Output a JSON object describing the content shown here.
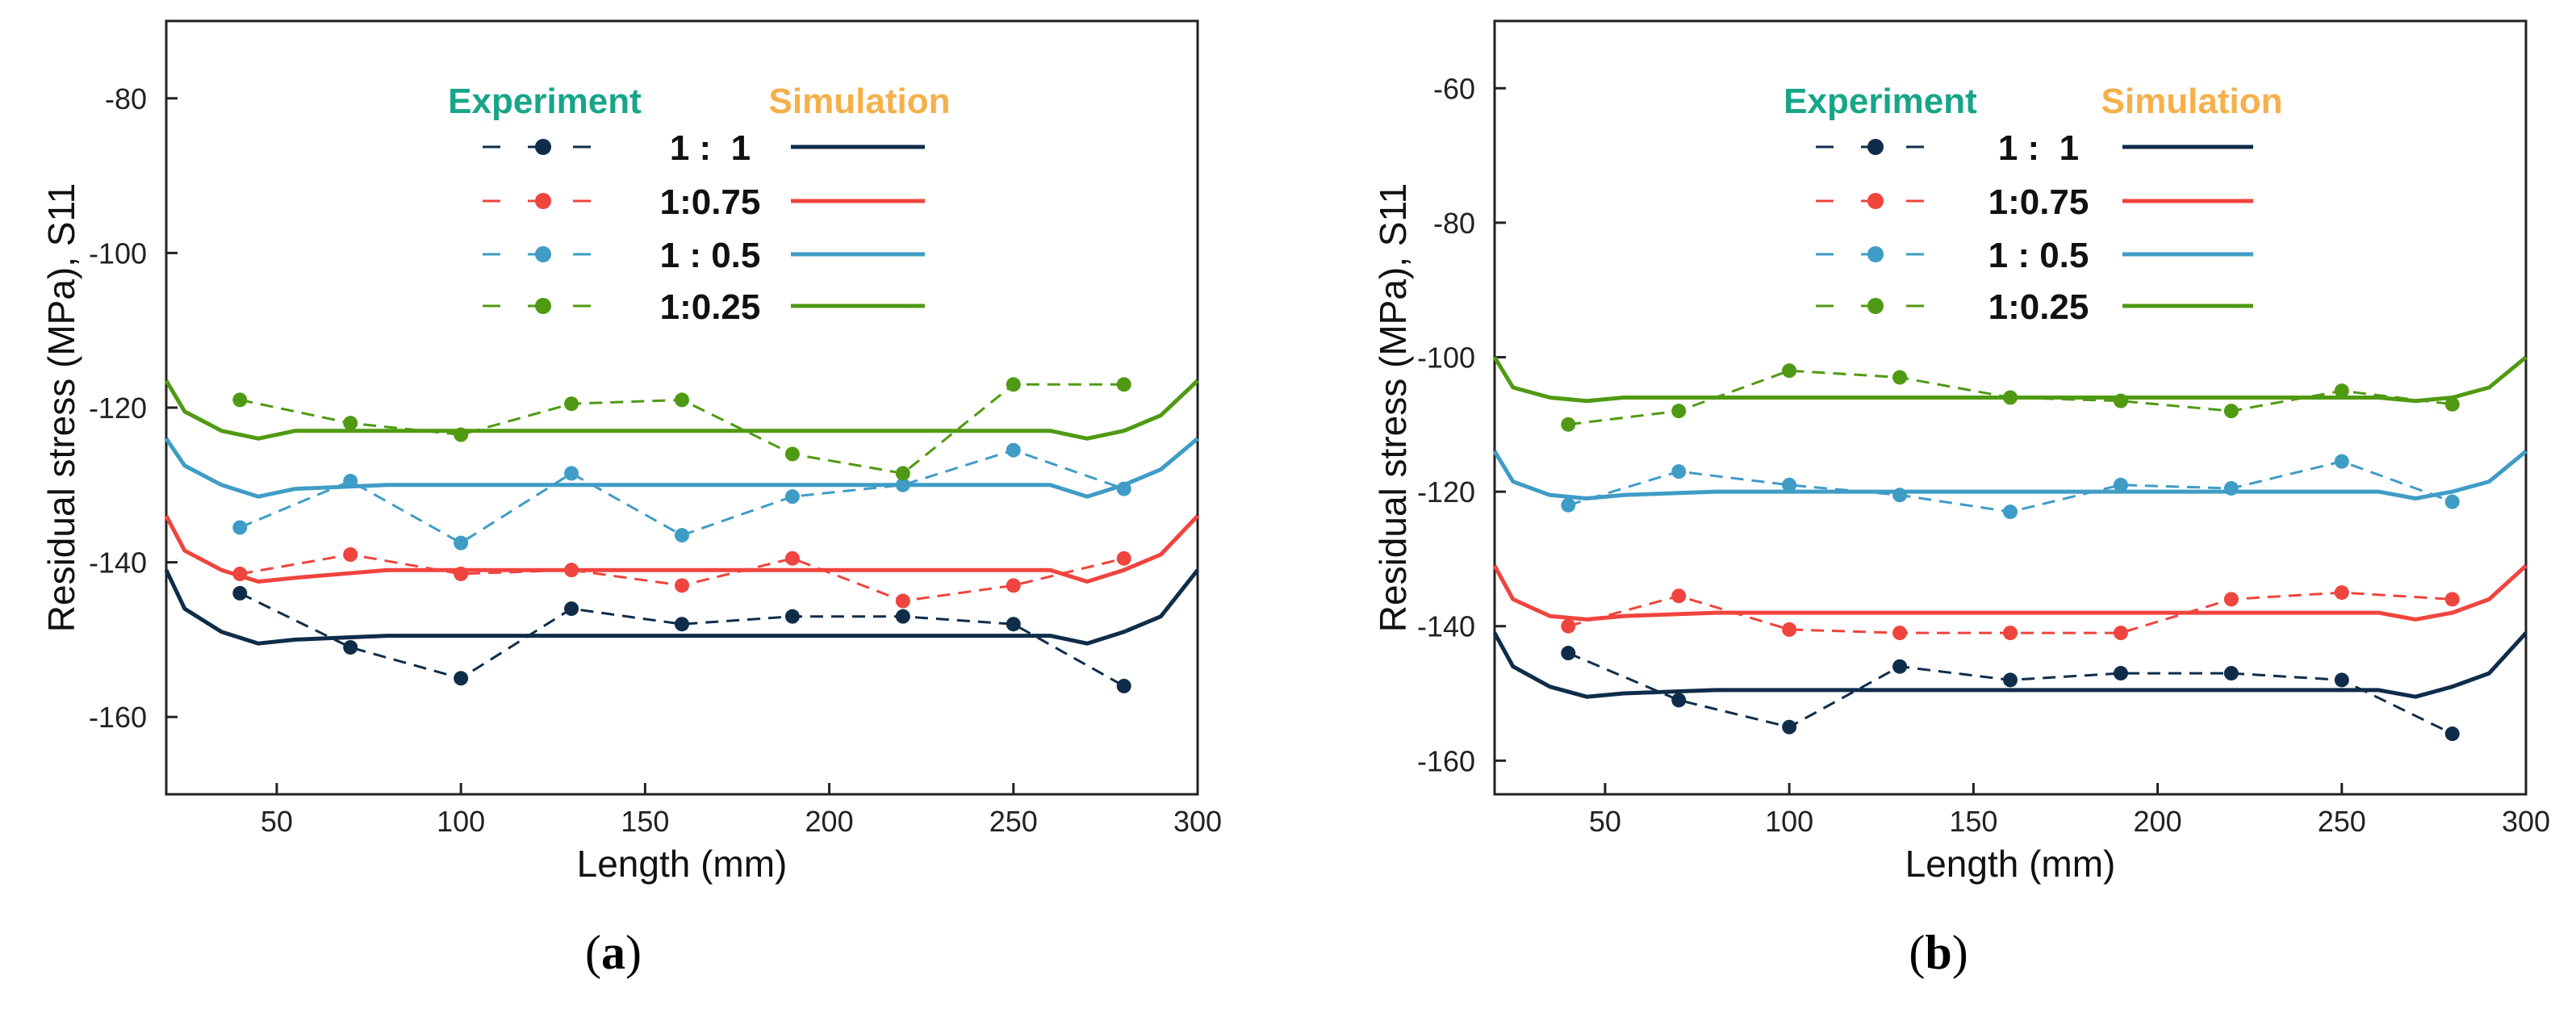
{
  "figure": {
    "legend_header_experiment": "Experiment",
    "legend_header_simulation": "Simulation",
    "colors": {
      "1 :  1": "#0f2d4a",
      "1:0.75": "#f0443e",
      "1 : 0.5": "#3f9cc6",
      "1:0.25": "#4f9a12",
      "experiment_header": "#17a589",
      "simulation_header": "#f5b04a"
    }
  },
  "chart_data": [
    {
      "type": "line",
      "panel": "a",
      "panel_prefix": "(",
      "panel_letter": "a",
      "panel_suffix": ")",
      "xlabel": "Length (mm)",
      "ylabel": "Residual stress (MPa), S11",
      "xlim": [
        20,
        300
      ],
      "ylim": [
        -170,
        -70
      ],
      "xticks": [
        50,
        100,
        150,
        200,
        250,
        300
      ],
      "yticks": [
        -160,
        -140,
        -120,
        -100,
        -80
      ],
      "legend": [
        "1 :  1",
        "1:0.75",
        "1 : 0.5",
        "1:0.25"
      ],
      "experiment": [
        {
          "name": "1 :  1",
          "x": [
            40,
            70,
            100,
            130,
            160,
            190,
            220,
            250,
            280
          ],
          "y": [
            -144,
            -151,
            -155,
            -146,
            -148,
            -147,
            -147,
            -148,
            -156
          ]
        },
        {
          "name": "1:0.75",
          "x": [
            40,
            70,
            100,
            130,
            160,
            190,
            220,
            250,
            280
          ],
          "y": [
            -141.5,
            -139,
            -141.5,
            -141,
            -143,
            -139.5,
            -145,
            -143,
            -139.5
          ]
        },
        {
          "name": "1 : 0.5",
          "x": [
            40,
            70,
            100,
            130,
            160,
            190,
            220,
            250,
            280
          ],
          "y": [
            -135.5,
            -129.5,
            -137.5,
            -128.5,
            -136.5,
            -131.5,
            -130,
            -125.5,
            -130.5
          ]
        },
        {
          "name": "1:0.25",
          "x": [
            40,
            70,
            100,
            130,
            160,
            190,
            220,
            250,
            280
          ],
          "y": [
            -119,
            -122,
            -123.5,
            -119.5,
            -119,
            -126,
            -128.5,
            -117,
            -117
          ]
        }
      ],
      "simulation": [
        {
          "name": "1 :  1",
          "x": [
            20,
            25,
            35,
            45,
            55,
            80,
            150,
            260,
            270,
            280,
            290,
            300
          ],
          "y": [
            -141,
            -146,
            -149,
            -150.5,
            -150,
            -149.5,
            -149.5,
            -149.5,
            -150.5,
            -149,
            -147,
            -141
          ]
        },
        {
          "name": "1:0.75",
          "x": [
            20,
            25,
            35,
            45,
            55,
            80,
            150,
            260,
            270,
            280,
            290,
            300
          ],
          "y": [
            -134,
            -138.5,
            -141,
            -142.5,
            -142,
            -141,
            -141,
            -141,
            -142.5,
            -141,
            -139,
            -134
          ]
        },
        {
          "name": "1 : 0.5",
          "x": [
            20,
            25,
            35,
            45,
            55,
            80,
            150,
            260,
            270,
            280,
            290,
            300
          ],
          "y": [
            -124,
            -127.5,
            -130,
            -131.5,
            -130.5,
            -130,
            -130,
            -130,
            -131.5,
            -130,
            -128,
            -124
          ]
        },
        {
          "name": "1:0.25",
          "x": [
            20,
            25,
            35,
            45,
            55,
            80,
            150,
            260,
            270,
            280,
            290,
            300
          ],
          "y": [
            -116.5,
            -120.5,
            -123,
            -124,
            -123,
            -123,
            -123,
            -123,
            -124,
            -123,
            -121,
            -116.5
          ]
        }
      ]
    },
    {
      "type": "line",
      "panel": "b",
      "panel_prefix": "(",
      "panel_letter": "b",
      "panel_suffix": ")",
      "xlabel": "Length (mm)",
      "ylabel": "Residual stress (MPa), S11",
      "xlim": [
        20,
        300
      ],
      "ylim": [
        -165,
        -50
      ],
      "xticks": [
        50,
        100,
        150,
        200,
        250,
        300
      ],
      "yticks": [
        -160,
        -140,
        -120,
        -100,
        -80,
        -60
      ],
      "legend": [
        "1 :  1",
        "1:0.75",
        "1 : 0.5",
        "1:0.25"
      ],
      "experiment": [
        {
          "name": "1 :  1",
          "x": [
            40,
            70,
            100,
            130,
            160,
            190,
            220,
            250,
            280
          ],
          "y": [
            -144,
            -151,
            -155,
            -146,
            -148,
            -147,
            -147,
            -148,
            -156
          ]
        },
        {
          "name": "1:0.75",
          "x": [
            40,
            70,
            100,
            130,
            160,
            190,
            220,
            250,
            280
          ],
          "y": [
            -140,
            -135.5,
            -140.5,
            -141,
            -141,
            -141,
            -136,
            -135,
            -136
          ]
        },
        {
          "name": "1 : 0.5",
          "x": [
            40,
            70,
            100,
            130,
            160,
            190,
            220,
            250,
            280
          ],
          "y": [
            -122,
            -117,
            -119,
            -120.5,
            -123,
            -119,
            -119.5,
            -115.5,
            -121.5
          ]
        },
        {
          "name": "1:0.25",
          "x": [
            40,
            70,
            100,
            130,
            160,
            190,
            220,
            250,
            280
          ],
          "y": [
            -110,
            -108,
            -102,
            -103,
            -106,
            -106.5,
            -108,
            -105,
            -107
          ]
        }
      ],
      "simulation": [
        {
          "name": "1 :  1",
          "x": [
            20,
            25,
            35,
            45,
            55,
            80,
            150,
            260,
            270,
            280,
            290,
            300
          ],
          "y": [
            -141,
            -146,
            -149,
            -150.5,
            -150,
            -149.5,
            -149.5,
            -149.5,
            -150.5,
            -149,
            -147,
            -141
          ]
        },
        {
          "name": "1:0.75",
          "x": [
            20,
            25,
            35,
            45,
            55,
            80,
            150,
            260,
            270,
            280,
            290,
            300
          ],
          "y": [
            -131,
            -136,
            -138.5,
            -139,
            -138.5,
            -138,
            -138,
            -138,
            -139,
            -138,
            -136,
            -131
          ]
        },
        {
          "name": "1 : 0.5",
          "x": [
            20,
            25,
            35,
            45,
            55,
            80,
            150,
            260,
            270,
            280,
            290,
            300
          ],
          "y": [
            -114,
            -118.5,
            -120.5,
            -121,
            -120.5,
            -120,
            -120,
            -120,
            -121,
            -120,
            -118.5,
            -114
          ]
        },
        {
          "name": "1:0.25",
          "x": [
            20,
            25,
            35,
            45,
            55,
            80,
            150,
            260,
            270,
            280,
            290,
            300
          ],
          "y": [
            -100,
            -104.5,
            -106,
            -106.5,
            -106,
            -106,
            -106,
            -106,
            -106.5,
            -106,
            -104.5,
            -100
          ]
        }
      ]
    }
  ]
}
